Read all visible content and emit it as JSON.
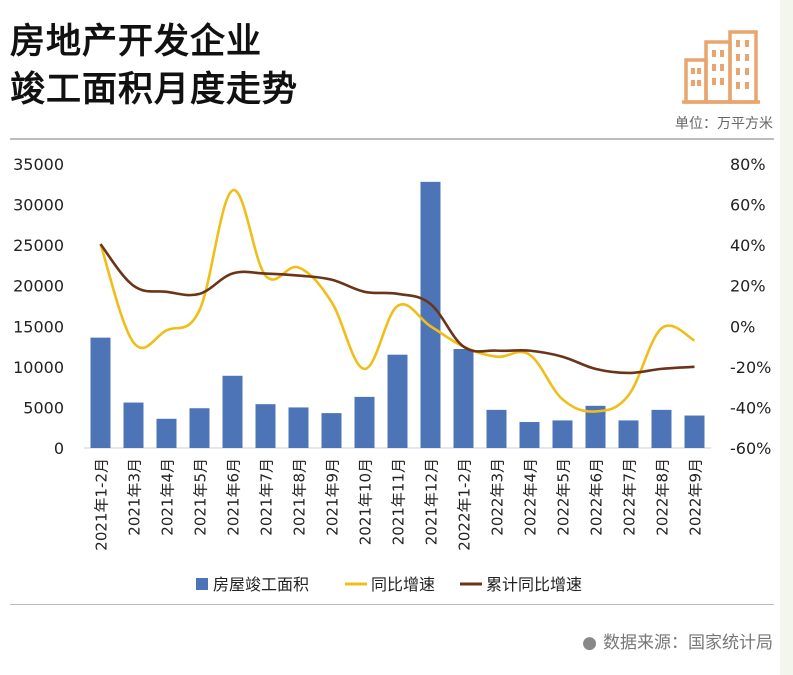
{
  "header": {
    "title_line1": "房地产开发企业",
    "title_line2": "竣工面积月度走势",
    "unit_label": "单位：万平方米"
  },
  "footer": {
    "source_label": "数据来源：国家统计局"
  },
  "colors": {
    "bar": "#4e74b8",
    "yoy_line": "#f0be19",
    "cumulative_line": "#6b3419",
    "logo": "#e8a66e"
  },
  "icons": {
    "logo": "buildings-icon",
    "source_dot": "bullet-icon"
  },
  "chart_data": {
    "type": "bar",
    "categories": [
      "2021年1-2月",
      "2021年3月",
      "2021年4月",
      "2021年5月",
      "2021年6月",
      "2021年7月",
      "2021年8月",
      "2021年9月",
      "2021年10月",
      "2021年11月",
      "2021年12月",
      "2022年1-2月",
      "2022年3月",
      "2022年4月",
      "2022年5月",
      "2022年6月",
      "2022年7月",
      "2022年8月",
      "2022年9月"
    ],
    "y_left": {
      "ticks": [
        "35000",
        "30000",
        "25000",
        "20000",
        "15000",
        "10000",
        "5000",
        "0"
      ],
      "range": [
        0,
        35000
      ]
    },
    "y_right": {
      "ticks": [
        "80%",
        "60%",
        "40%",
        "20%",
        "0%",
        "-20%",
        "-40%",
        "-60%"
      ],
      "range": [
        -60,
        80
      ]
    },
    "series": [
      {
        "name": "房屋竣工面积",
        "type": "bar",
        "axis": "left",
        "values": [
          13600,
          5600,
          3600,
          4900,
          8900,
          5400,
          5000,
          4300,
          6300,
          11500,
          32800,
          12200,
          4700,
          3200,
          3400,
          5200,
          3400,
          4700,
          4000
        ]
      },
      {
        "name": "同比增速",
        "type": "line",
        "axis": "right",
        "values": [
          40.5,
          -8,
          -2,
          8,
          67,
          25,
          29,
          12,
          -21,
          10,
          0,
          -10,
          -15,
          -14,
          -36,
          -42,
          -34,
          -1,
          -7
        ]
      },
      {
        "name": "累计同比增速",
        "type": "line",
        "axis": "right",
        "values": [
          40.5,
          20,
          17,
          16,
          26,
          26,
          25,
          23,
          17,
          16,
          11,
          -10,
          -12,
          -12,
          -15,
          -21,
          -23,
          -21,
          -20
        ]
      }
    ],
    "legend": [
      {
        "label": "房屋竣工面积",
        "type": "bar"
      },
      {
        "label": "同比增速",
        "type": "line"
      },
      {
        "label": "累计同比增速",
        "type": "line"
      }
    ],
    "legend_position": "bottom"
  }
}
